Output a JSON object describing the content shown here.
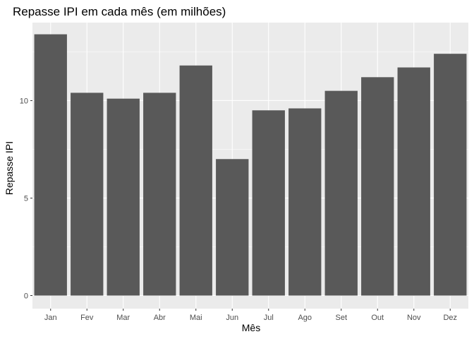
{
  "chart_data": {
    "type": "bar",
    "title": "Repasse IPI em cada mês (em milhões)",
    "xlabel": "Mês",
    "ylabel": "Repasse IPI",
    "categories": [
      "Jan",
      "Fev",
      "Mar",
      "Abr",
      "Mai",
      "Jun",
      "Jul",
      "Ago",
      "Set",
      "Out",
      "Nov",
      "Dez"
    ],
    "values": [
      13.4,
      10.4,
      10.1,
      10.4,
      11.8,
      7.0,
      9.5,
      9.6,
      10.5,
      11.2,
      11.7,
      12.4
    ],
    "ylim": [
      -0.67,
      14.0
    ],
    "yticks": [
      0,
      5,
      10
    ],
    "ytick_labels": [
      "0",
      "5",
      "10"
    ],
    "grid": true,
    "colors": {
      "panel_bg": "#ebebeb",
      "grid_major": "#ffffff",
      "bar_fill": "#595959",
      "tick_text": "#4d4d4d"
    }
  }
}
